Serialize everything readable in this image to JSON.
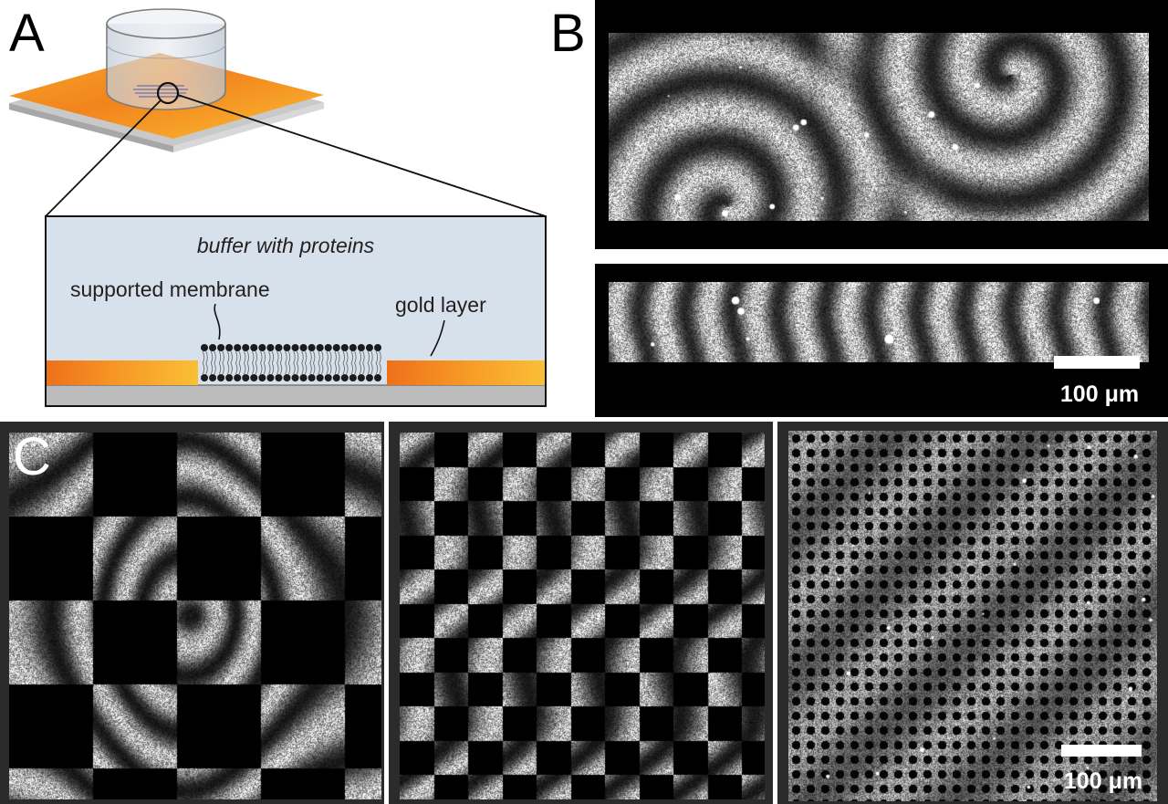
{
  "panels": {
    "a": {
      "letter": "A"
    },
    "b": {
      "letter": "B"
    },
    "c": {
      "letter": "C"
    }
  },
  "schematic": {
    "buffer_label": "buffer with proteins",
    "membrane_label": "supported membrane",
    "gold_label": "gold layer"
  },
  "scale_bars": {
    "b_label": "100 μm",
    "c_label": "100 μm"
  },
  "colors": {
    "gold_light": "#f6b52e",
    "gold_dark": "#ea6a12",
    "buffer": "#d7e2ec",
    "substrate": "#bdbdbd",
    "frame": "#231f20"
  },
  "c_panels": [
    {
      "pattern": "coarse checkerboard"
    },
    {
      "pattern": "medium checkerboard"
    },
    {
      "pattern": "fine dot lattice"
    }
  ]
}
